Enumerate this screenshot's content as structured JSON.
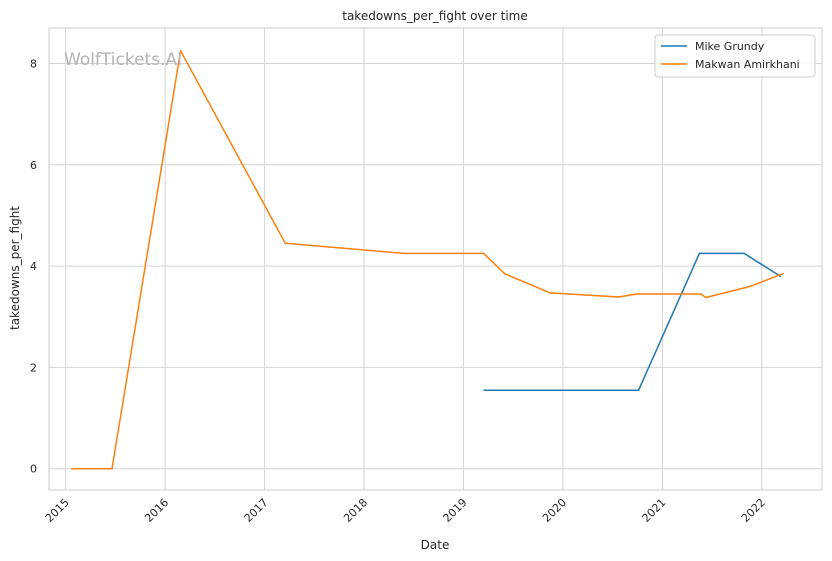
{
  "chart_data": {
    "type": "line",
    "title": "takedowns_per_fight over time",
    "xlabel": "Date",
    "ylabel": "takedowns_per_fight",
    "watermark": "WolfTickets.AI",
    "x_ticks": [
      "2015",
      "2016",
      "2017",
      "2018",
      "2019",
      "2020",
      "2021",
      "2022"
    ],
    "y_ticks": [
      "0",
      "2",
      "4",
      "6",
      "8"
    ],
    "xlim": [
      "2014-11-01",
      "2022-08-10"
    ],
    "ylim": [
      -0.42,
      8.7
    ],
    "grid": true,
    "legend_position": "top-right",
    "series": [
      {
        "name": "Mike Grundy",
        "color": "#1f77b4",
        "points": [
          [
            "2019-03-18",
            1.55
          ],
          [
            "2020-10-05",
            1.55
          ],
          [
            "2021-05-17",
            4.25
          ],
          [
            "2021-10-28",
            4.25
          ],
          [
            "2022-03-10",
            3.8
          ]
        ]
      },
      {
        "name": "Makwan Amirkhani",
        "color": "#ff7f0e",
        "points": [
          [
            "2015-01-24",
            0.0
          ],
          [
            "2015-06-20",
            0.0
          ],
          [
            "2016-02-27",
            8.25
          ],
          [
            "2017-03-18",
            4.45
          ],
          [
            "2018-05-27",
            4.25
          ],
          [
            "2019-03-16",
            4.25
          ],
          [
            "2019-06-01",
            3.85
          ],
          [
            "2019-11-16",
            3.47
          ],
          [
            "2020-07-25",
            3.39
          ],
          [
            "2020-09-27",
            3.45
          ],
          [
            "2021-05-22",
            3.45
          ],
          [
            "2021-06-10",
            3.38
          ],
          [
            "2021-11-20",
            3.6
          ],
          [
            "2022-03-19",
            3.85
          ]
        ]
      }
    ]
  }
}
